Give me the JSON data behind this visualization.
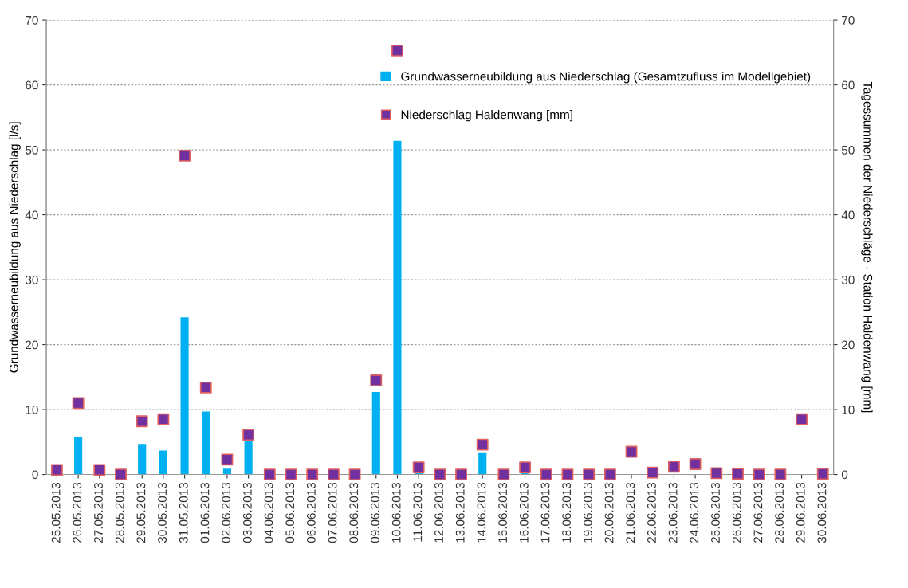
{
  "chart_data": {
    "type": "bar",
    "ylabel": "Grundwasserneubildung aus Niederschlag [l/s]",
    "y2label": "Tagessummen der Niederschläge - Station Haldenwang [mm]",
    "categories": [
      "25.05.2013",
      "26.05.2013",
      "27.05.2013",
      "28.05.2013",
      "29.05.2013",
      "30.05.2013",
      "31.05.2013",
      "01.06.2013",
      "02.06.2013",
      "03.06.2013",
      "04.06.2013",
      "05.06.2013",
      "06.06.2013",
      "07.06.2013",
      "08.06.2013",
      "09.06.2013",
      "10.06.2013",
      "11.06.2013",
      "12.06.2013",
      "13.06.2013",
      "14.06.2013",
      "15.06.2013",
      "16.06.2013",
      "17.06.2013",
      "18.06.2013",
      "19.06.2013",
      "20.06.2013",
      "21.06.2013",
      "22.06.2013",
      "23.06.2013",
      "24.06.2013",
      "25.06.2013",
      "26.06.2013",
      "27.06.2013",
      "28.06.2013",
      "29.06.2013",
      "30.06.2013"
    ],
    "series": [
      {
        "name": "Grundwasserneubildung aus Niederschlag (Gesamtzufluss im Modellgebiet)",
        "color": "#00b0f0",
        "values": [
          0,
          5.7,
          0,
          0,
          4.7,
          3.7,
          24.2,
          9.7,
          0.9,
          5.5,
          0,
          0,
          0,
          0,
          0,
          12.7,
          51.4,
          0.2,
          0,
          0,
          3.4,
          0,
          0.3,
          0,
          0,
          0,
          0,
          0,
          0,
          0,
          0,
          0,
          0,
          0,
          0,
          0,
          0
        ]
      },
      {
        "name": "Niederschlag Haldenwang [mm]",
        "type": "scatter",
        "axis": "y2",
        "color": "#7030a0",
        "values": [
          0.7,
          11.0,
          0.7,
          0,
          8.2,
          8.5,
          49.1,
          13.4,
          2.3,
          6.1,
          0,
          0,
          0,
          0,
          0,
          14.5,
          65.3,
          1.1,
          0,
          0,
          4.6,
          0,
          1.1,
          0,
          0,
          0,
          0,
          3.5,
          0.3,
          1.2,
          1.6,
          0.2,
          0.1,
          0,
          0,
          8.5,
          0.1
        ]
      }
    ],
    "ylim": [
      0,
      70
    ],
    "yticks": [
      0,
      10,
      20,
      30,
      40,
      50,
      60,
      70
    ],
    "y2lim": [
      0,
      70
    ],
    "y2ticks": [
      0,
      10,
      20,
      30,
      40,
      50,
      60,
      70
    ],
    "grid": "y",
    "legend": "top right",
    "marker": "square"
  }
}
